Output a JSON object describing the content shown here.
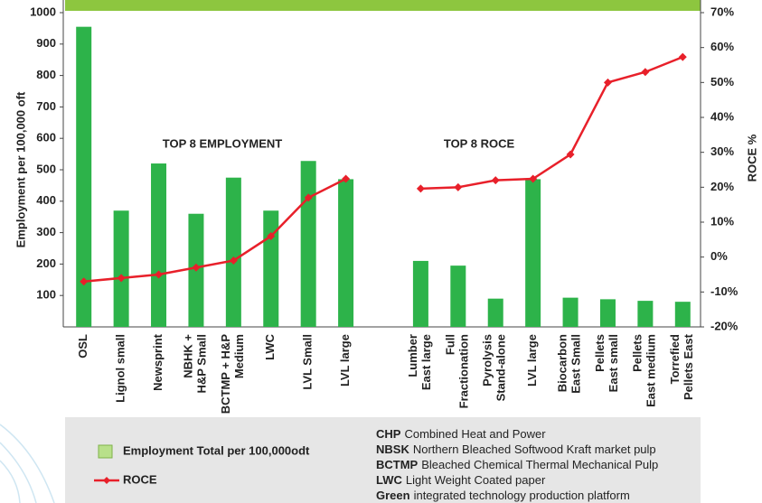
{
  "chart_data": {
    "type": "bar-line",
    "y_label": "Employment per 100,000 oft",
    "y2_label": "ROCE %",
    "annotations": [
      "TOP 8 EMPLOYMENT",
      "TOP 8 ROCE"
    ],
    "categories": [
      "OSL",
      "Lignol small",
      "Newsprint",
      "NBHK +\nH&P Small",
      "BCTMP + H&P\nMedium",
      "LWC",
      "LVL  Small",
      "LVL large",
      null,
      "Lumber\nEast large",
      "Full\nFractionation",
      "Pyrolysis\nStand-alone",
      "LVL large",
      "Biocarbon\nEast Small",
      "Pellets\nEast small",
      "Pellets\nEast medium",
      "Torrefied\nPellets East"
    ],
    "series": [
      {
        "name": "Employment Total per 100,000odt",
        "color": "#2db34a",
        "kind": "bar",
        "values": [
          955,
          370,
          520,
          360,
          475,
          370,
          528,
          470,
          null,
          210,
          195,
          90,
          470,
          93,
          88,
          83,
          80
        ]
      },
      {
        "name": "ROCE",
        "color": "#e8202a",
        "kind": "line",
        "axis": "y2",
        "values": [
          -7,
          -6,
          -5,
          -3,
          -1,
          6,
          17,
          22.4,
          null,
          19.6,
          20,
          22,
          22.4,
          29.4,
          50,
          53,
          57.3
        ]
      }
    ],
    "ylim": [
      0,
      1000
    ],
    "yticks": [
      100,
      200,
      300,
      400,
      500,
      600,
      700,
      800,
      900,
      1000
    ],
    "y2lim": [
      -20,
      70
    ],
    "y2ticks": [
      {
        "value": -20,
        "label": "-20%"
      },
      {
        "value": -10,
        "label": "-10%"
      },
      {
        "value": 0,
        "label": "0%"
      },
      {
        "value": 10,
        "label": "10%"
      },
      {
        "value": 20,
        "label": "20%"
      },
      {
        "value": 30,
        "label": "30%"
      },
      {
        "value": 40,
        "label": "40%"
      },
      {
        "value": 50,
        "label": "50%"
      },
      {
        "value": 60,
        "label": "60%"
      },
      {
        "value": 70,
        "label": "70%"
      }
    ],
    "notes": [
      {
        "term": "CHP",
        "text": "Combined Heat and Power"
      },
      {
        "term": "NBSK",
        "text": "Northern Bleached Softwood Kraft market pulp"
      },
      {
        "term": "BCTMP",
        "text": "Bleached Chemical Thermal Mechanical Pulp"
      },
      {
        "term": "LWC",
        "text": "Light Weight Coated paper"
      },
      {
        "term": "Green",
        "text": "integrated technology production platform"
      }
    ]
  }
}
